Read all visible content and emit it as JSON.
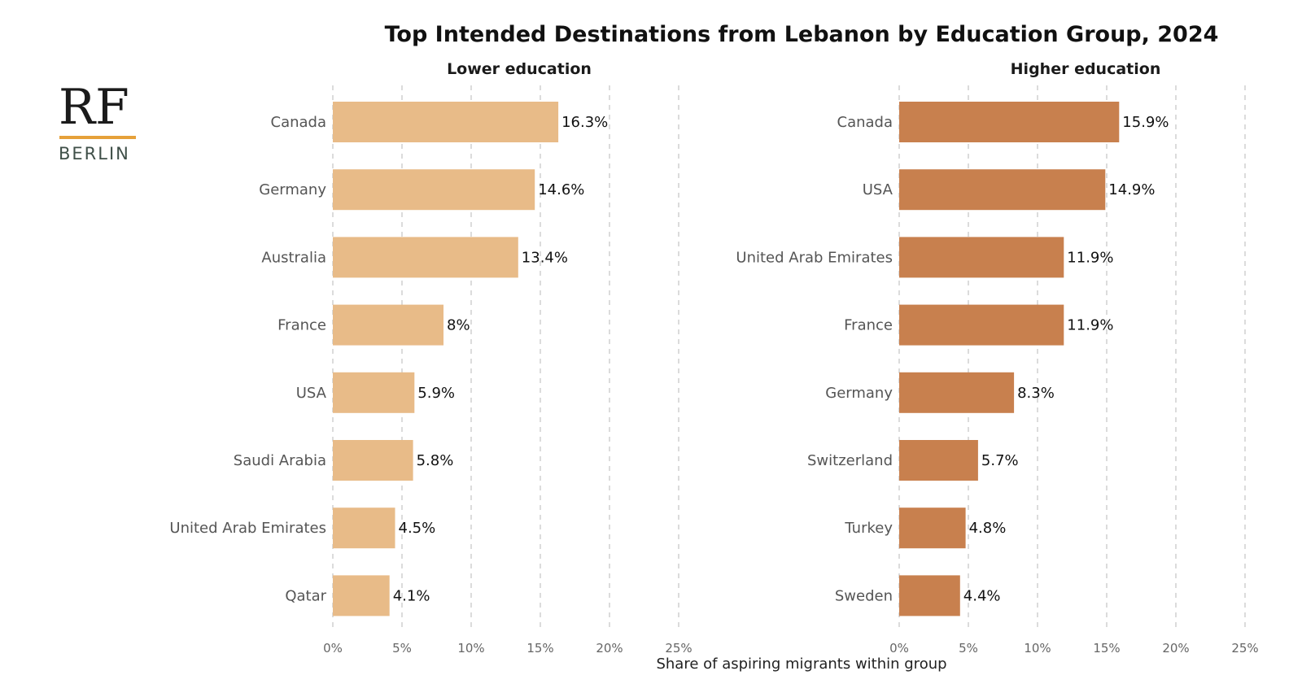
{
  "logo": {
    "main": "RF",
    "sub": "BERLIN",
    "rule_color": "#e6a13a"
  },
  "chart_data": {
    "type": "bar",
    "title": "Top Intended Destinations from Lebanon by Education Group, 2024",
    "xlabel": "Share of aspiring migrants within group",
    "xlim": [
      0,
      25
    ],
    "xticks": [
      0,
      5,
      10,
      15,
      20,
      25
    ],
    "xtick_labels": [
      "0%",
      "5%",
      "10%",
      "15%",
      "20%",
      "25%"
    ],
    "grid": true,
    "panels": [
      {
        "name": "Lower education",
        "color": "#e8bb88",
        "categories": [
          "Canada",
          "Germany",
          "Australia",
          "France",
          "USA",
          "Saudi Arabia",
          "United Arab Emirates",
          "Qatar"
        ],
        "values": [
          16.3,
          14.6,
          13.4,
          8,
          5.9,
          5.8,
          4.5,
          4.1
        ],
        "labels": [
          "16.3%",
          "14.6%",
          "13.4%",
          "8%",
          "5.9%",
          "5.8%",
          "4.5%",
          "4.1%"
        ]
      },
      {
        "name": "Higher education",
        "color": "#c8804e",
        "categories": [
          "Canada",
          "USA",
          "United Arab Emirates",
          "France",
          "Germany",
          "Switzerland",
          "Turkey",
          "Sweden"
        ],
        "values": [
          15.9,
          14.9,
          11.9,
          11.9,
          8.3,
          5.7,
          4.8,
          4.4
        ],
        "labels": [
          "15.9%",
          "14.9%",
          "11.9%",
          "11.9%",
          "8.3%",
          "5.7%",
          "4.8%",
          "4.4%"
        ]
      }
    ]
  }
}
